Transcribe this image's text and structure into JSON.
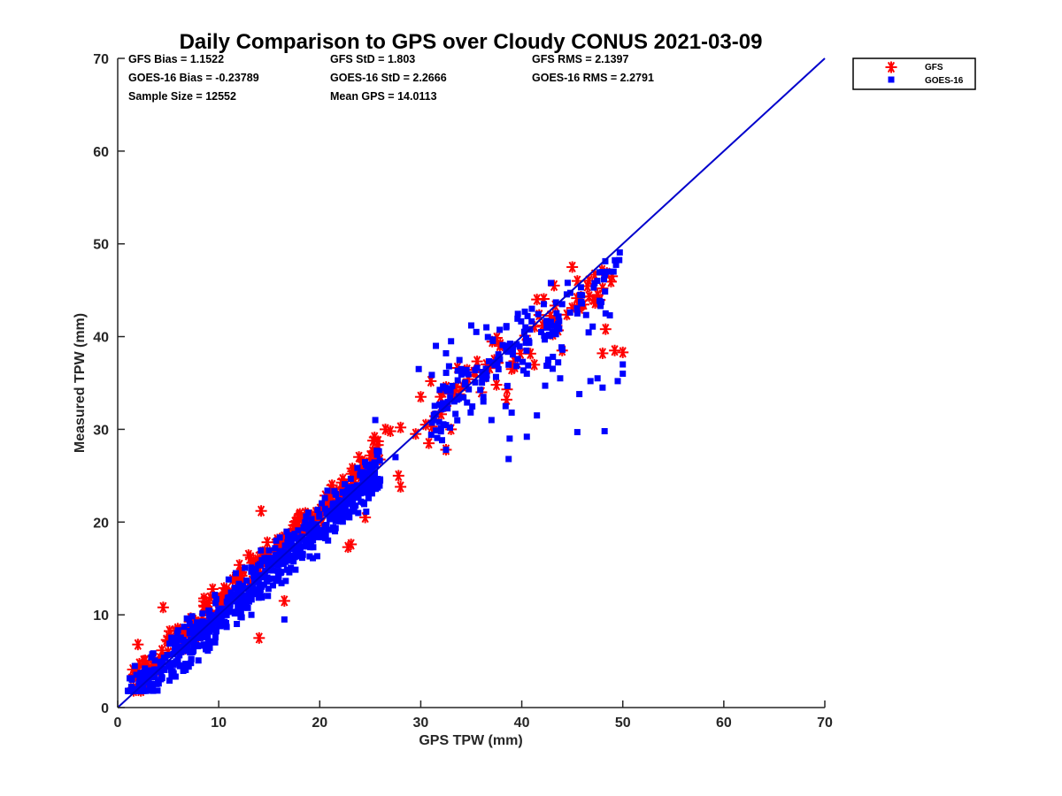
{
  "chart_data": {
    "type": "scatter",
    "title": "Daily Comparison to GPS over Cloudy CONUS 2021-03-09",
    "xlabel": "GPS TPW (mm)",
    "ylabel": "Measured TPW (mm)",
    "xlim": [
      0,
      70
    ],
    "ylim": [
      0,
      70
    ],
    "xticks": [
      0,
      10,
      20,
      30,
      40,
      50,
      60,
      70
    ],
    "yticks": [
      0,
      10,
      20,
      30,
      40,
      50,
      60,
      70
    ],
    "grid": false,
    "legend_position": "outside-top-right",
    "stats": [
      "GFS Bias = 1.1522",
      "GFS StD = 1.803",
      "GFS RMS = 2.1397",
      "GOES-16 Bias = -0.23789",
      "GOES-16 StD = 2.2666",
      "GOES-16 RMS = 2.2791",
      "Sample Size = 12552",
      "Mean GPS = 14.0113"
    ],
    "reference_line": {
      "x": [
        0,
        70
      ],
      "y": [
        0,
        70
      ],
      "color": "#0000cc"
    },
    "series": [
      {
        "name": "GFS",
        "marker": "asterisk",
        "color": "#ff0000",
        "clusters": [
          {
            "x": [
              1.5,
              26
            ],
            "slope": 1.02,
            "offset": 1.2,
            "spread": 1.6,
            "n": 240
          },
          {
            "x": [
              31,
              38
            ],
            "slope": 1.0,
            "offset": 1.0,
            "spread": 2.2,
            "n": 28
          },
          {
            "x": [
              38.5,
              49
            ],
            "slope": 0.9,
            "offset": 2.5,
            "spread": 2.5,
            "n": 38
          }
        ],
        "points": [
          [
            1.5,
            4.1
          ],
          [
            2.0,
            6.8
          ],
          [
            4.5,
            10.8
          ],
          [
            14.2,
            21.2
          ],
          [
            14.0,
            7.5
          ],
          [
            16.5,
            11.5
          ],
          [
            22.8,
            17.3
          ],
          [
            23.1,
            17.6
          ],
          [
            24.5,
            20.5
          ],
          [
            28.0,
            23.8
          ],
          [
            27.8,
            25.0
          ],
          [
            26.5,
            30.0
          ],
          [
            27.0,
            29.8
          ],
          [
            28.0,
            30.2
          ],
          [
            29.5,
            29.5
          ],
          [
            30.5,
            30.5
          ],
          [
            30.0,
            33.5
          ],
          [
            30.8,
            28.5
          ],
          [
            33.0,
            30.0
          ],
          [
            32.5,
            27.8
          ],
          [
            33.5,
            34.5
          ],
          [
            36.0,
            34.0
          ],
          [
            38.5,
            33.2
          ],
          [
            41.5,
            44.0
          ],
          [
            43.2,
            45.5
          ],
          [
            45.0,
            47.5
          ],
          [
            47.5,
            44.5
          ],
          [
            48.0,
            45.2
          ],
          [
            48.3,
            40.8
          ],
          [
            48.0,
            38.2
          ],
          [
            49.2,
            38.5
          ],
          [
            50.0,
            38.3
          ],
          [
            45.5,
            46.0
          ],
          [
            37.5,
            34.8
          ],
          [
            39.0,
            36.5
          ],
          [
            36.5,
            37.0
          ],
          [
            44.0,
            38.5
          ],
          [
            31.0,
            35.2
          ]
        ]
      },
      {
        "name": "GOES-16",
        "marker": "square",
        "color": "#0000ff",
        "clusters": [
          {
            "x": [
              1.0,
              26
            ],
            "slope": 1.0,
            "offset": -0.3,
            "spread": 2.3,
            "n": 700
          },
          {
            "x": [
              31,
              41
            ],
            "slope": 0.95,
            "offset": 2.0,
            "spread": 3.5,
            "n": 110
          },
          {
            "x": [
              40,
              50
            ],
            "slope": 0.95,
            "offset": -0.5,
            "spread": 3.5,
            "n": 70
          }
        ],
        "points": [
          [
            12.0,
            11.7
          ],
          [
            16.5,
            9.5
          ],
          [
            19.0,
            16.3
          ],
          [
            25.5,
            31.0
          ],
          [
            27.5,
            27.0
          ],
          [
            32.5,
            27.8
          ],
          [
            29.8,
            36.5
          ],
          [
            31.5,
            39.0
          ],
          [
            32.5,
            38.2
          ],
          [
            32.8,
            36.8
          ],
          [
            33.0,
            39.5
          ],
          [
            34.0,
            36.5
          ],
          [
            35.5,
            40.5
          ],
          [
            38.7,
            26.8
          ],
          [
            38.8,
            29.0
          ],
          [
            40.5,
            29.2
          ],
          [
            41.5,
            31.5
          ],
          [
            45.5,
            29.7
          ],
          [
            48.2,
            29.8
          ],
          [
            45.7,
            33.8
          ],
          [
            43.8,
            35.5
          ],
          [
            46.8,
            35.2
          ],
          [
            47.5,
            35.5
          ],
          [
            48.0,
            34.5
          ],
          [
            49.5,
            35.2
          ],
          [
            50.0,
            36.0
          ],
          [
            50.0,
            37.0
          ],
          [
            41.0,
            43.0
          ],
          [
            44.0,
            43.5
          ],
          [
            45.5,
            42.5
          ],
          [
            47.8,
            43.3
          ],
          [
            48.3,
            42.5
          ],
          [
            35.0,
            41.2
          ],
          [
            36.5,
            41.0
          ],
          [
            40.5,
            36.0
          ],
          [
            36.2,
            33.0
          ],
          [
            38.4,
            32.5
          ],
          [
            37.0,
            31.0
          ],
          [
            39.0,
            31.8
          ]
        ]
      }
    ]
  }
}
